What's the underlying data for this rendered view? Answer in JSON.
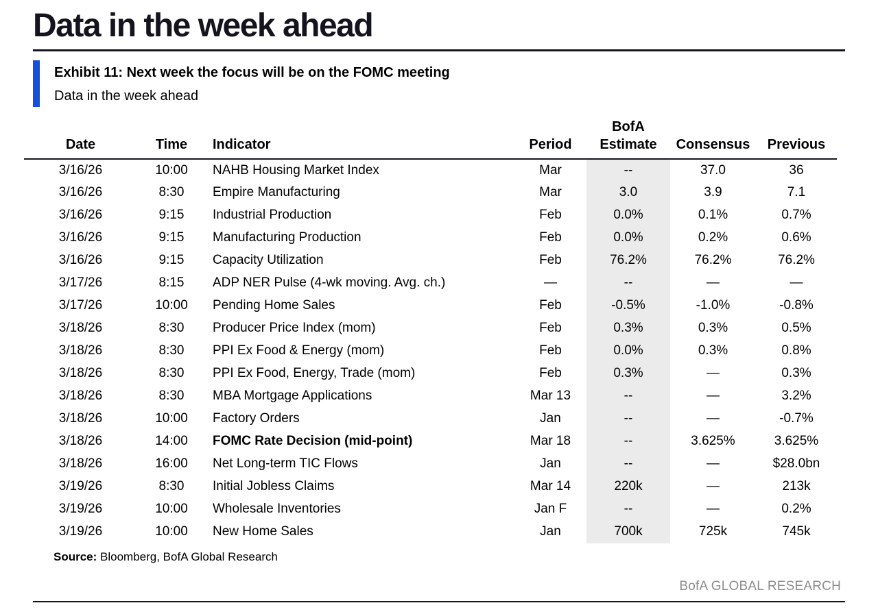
{
  "page": {
    "title": "Data in the week ahead",
    "footer_brand": "BofA GLOBAL RESEARCH"
  },
  "colors": {
    "accent_blue": "#1550d8",
    "estimate_shade": "#ebebeb",
    "brand_gray": "#8c8c8c",
    "ink": "#14141e"
  },
  "exhibit": {
    "heading": "Exhibit 11: Next week the focus will be on the FOMC meeting",
    "subheading": "Data in the week ahead"
  },
  "source": {
    "label": "Source:",
    "text": " Bloomberg, BofA Global Research"
  },
  "table": {
    "columns": [
      {
        "key": "date",
        "label": "Date"
      },
      {
        "key": "time",
        "label": "Time"
      },
      {
        "key": "indicator",
        "label": "Indicator"
      },
      {
        "key": "period",
        "label": "Period"
      },
      {
        "key": "bofa",
        "label": "BofA Estimate",
        "label_line1": "BofA",
        "label_line2": "Estimate"
      },
      {
        "key": "consensus",
        "label": "Consensus"
      },
      {
        "key": "previous",
        "label": "Previous"
      }
    ],
    "rows": [
      {
        "date": "3/16/26",
        "time": "10:00",
        "indicator": "NAHB Housing Market Index",
        "period": "Mar",
        "bofa": "--",
        "consensus": "37.0",
        "previous": "36",
        "bold": false
      },
      {
        "date": "3/16/26",
        "time": "8:30",
        "indicator": "Empire Manufacturing",
        "period": "Mar",
        "bofa": "3.0",
        "consensus": "3.9",
        "previous": "7.1",
        "bold": false
      },
      {
        "date": "3/16/26",
        "time": "9:15",
        "indicator": "Industrial Production",
        "period": "Feb",
        "bofa": "0.0%",
        "consensus": "0.1%",
        "previous": "0.7%",
        "bold": false
      },
      {
        "date": "3/16/26",
        "time": "9:15",
        "indicator": "Manufacturing Production",
        "period": "Feb",
        "bofa": "0.0%",
        "consensus": "0.2%",
        "previous": "0.6%",
        "bold": false
      },
      {
        "date": "3/16/26",
        "time": "9:15",
        "indicator": "Capacity Utilization",
        "period": "Feb",
        "bofa": "76.2%",
        "consensus": "76.2%",
        "previous": "76.2%",
        "bold": false
      },
      {
        "date": "3/17/26",
        "time": "8:15",
        "indicator": "ADP NER Pulse (4-wk moving. Avg. ch.)",
        "period": "—",
        "bofa": "--",
        "consensus": "—",
        "previous": "—",
        "bold": false
      },
      {
        "date": "3/17/26",
        "time": "10:00",
        "indicator": "Pending Home Sales",
        "period": "Feb",
        "bofa": "-0.5%",
        "consensus": "-1.0%",
        "previous": "-0.8%",
        "bold": false
      },
      {
        "date": "3/18/26",
        "time": "8:30",
        "indicator": "Producer Price Index (mom)",
        "period": "Feb",
        "bofa": "0.3%",
        "consensus": "0.3%",
        "previous": "0.5%",
        "bold": false
      },
      {
        "date": "3/18/26",
        "time": "8:30",
        "indicator": "PPI Ex Food & Energy (mom)",
        "period": "Feb",
        "bofa": "0.0%",
        "consensus": "0.3%",
        "previous": "0.8%",
        "bold": false
      },
      {
        "date": "3/18/26",
        "time": "8:30",
        "indicator": "PPI Ex Food, Energy, Trade (mom)",
        "period": "Feb",
        "bofa": "0.3%",
        "consensus": "—",
        "previous": "0.3%",
        "bold": false
      },
      {
        "date": "3/18/26",
        "time": "8:30",
        "indicator": "MBA Mortgage Applications",
        "period": "Mar 13",
        "bofa": "--",
        "consensus": "—",
        "previous": "3.2%",
        "bold": false
      },
      {
        "date": "3/18/26",
        "time": "10:00",
        "indicator": "Factory Orders",
        "period": "Jan",
        "bofa": "--",
        "consensus": "—",
        "previous": "-0.7%",
        "bold": false
      },
      {
        "date": "3/18/26",
        "time": "14:00",
        "indicator": "FOMC Rate Decision (mid-point)",
        "period": "Mar 18",
        "bofa": "--",
        "consensus": "3.625%",
        "previous": "3.625%",
        "bold": true
      },
      {
        "date": "3/18/26",
        "time": "16:00",
        "indicator": "Net Long-term TIC Flows",
        "period": "Jan",
        "bofa": "--",
        "consensus": "—",
        "previous": "$28.0bn",
        "bold": false
      },
      {
        "date": "3/19/26",
        "time": "8:30",
        "indicator": "Initial Jobless Claims",
        "period": "Mar 14",
        "bofa": "220k",
        "consensus": "—",
        "previous": "213k",
        "bold": false
      },
      {
        "date": "3/19/26",
        "time": "10:00",
        "indicator": "Wholesale Inventories",
        "period": "Jan F",
        "bofa": "--",
        "consensus": "—",
        "previous": "0.2%",
        "bold": false
      },
      {
        "date": "3/19/26",
        "time": "10:00",
        "indicator": "New Home Sales",
        "period": "Jan",
        "bofa": "700k",
        "consensus": "725k",
        "previous": "745k",
        "bold": false
      }
    ]
  }
}
